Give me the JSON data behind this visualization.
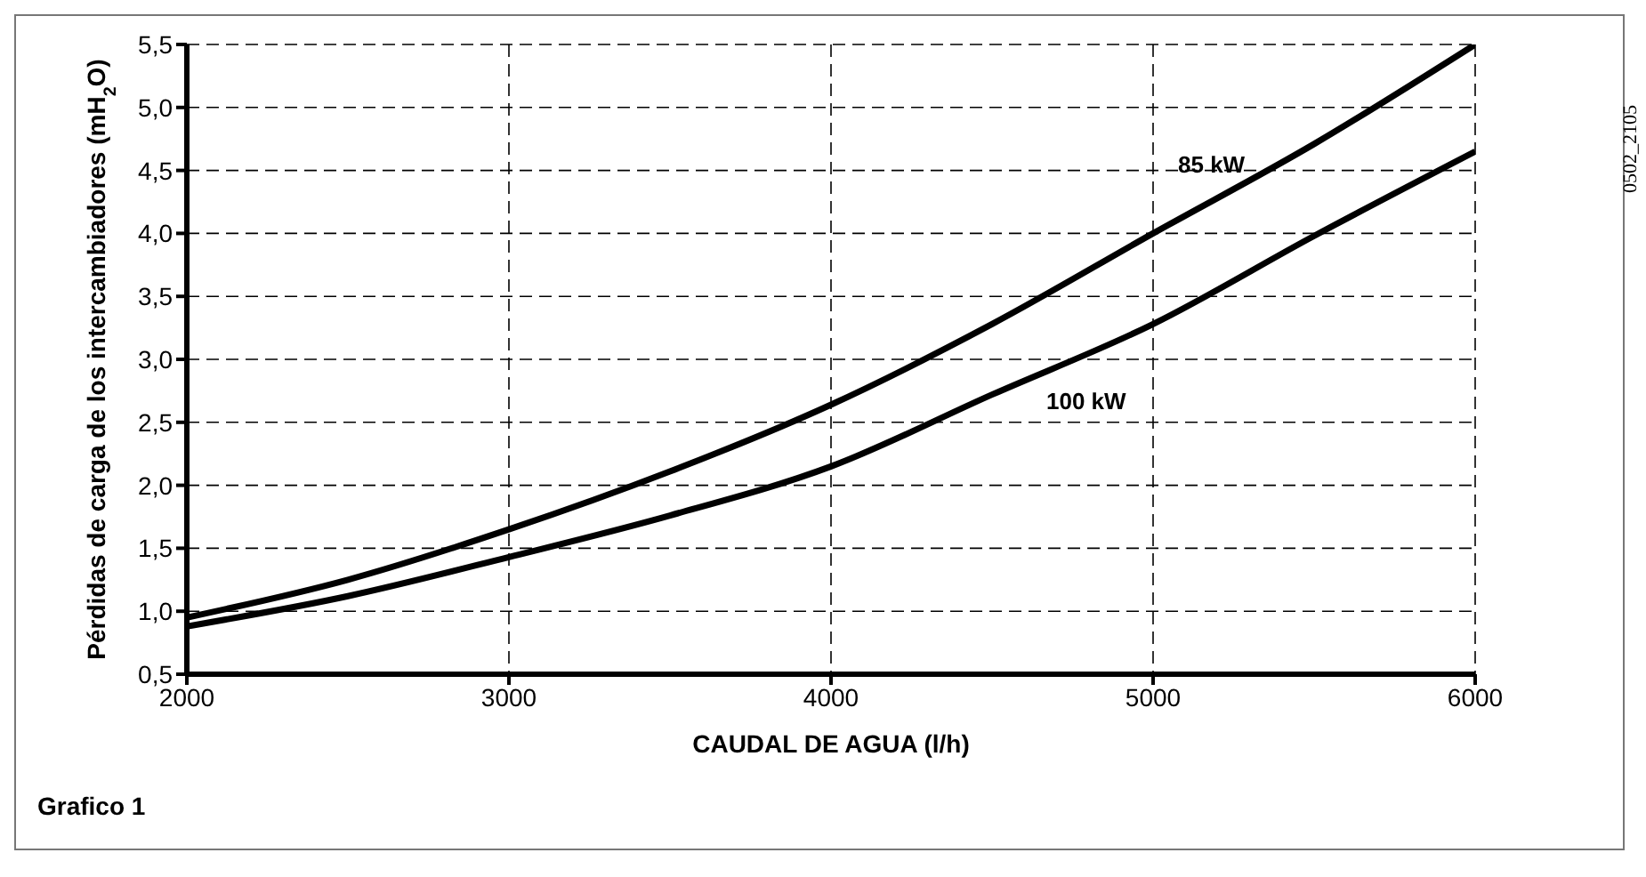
{
  "chart_data": {
    "type": "line",
    "xlabel": "CAUDAL DE AGUA (l/h)",
    "ylabel": "Pérdidas de carga de los intercambiadores (mH$_{2}$O)",
    "x": [
      2000,
      2500,
      3000,
      3500,
      4000,
      4500,
      5000,
      5500,
      6000
    ],
    "series": [
      {
        "name": "85 kW",
        "color": "#000000",
        "values": [
          0.95,
          1.25,
          1.65,
          2.11,
          2.64,
          3.28,
          4.0,
          4.71,
          5.5
        ]
      },
      {
        "name": "100 kW",
        "color": "#000000",
        "values": [
          0.88,
          1.12,
          1.43,
          1.76,
          2.15,
          2.72,
          3.28,
          3.98,
          4.65
        ]
      }
    ],
    "xlim": [
      2000,
      6000
    ],
    "xticks": [
      2000,
      3000,
      4000,
      5000,
      6000
    ],
    "ylim": [
      0.5,
      5.5
    ],
    "yticks": [
      {
        "value": 0.5,
        "label": "0,5"
      },
      {
        "value": 1,
        "label": "1,0"
      },
      {
        "value": 1.5,
        "label": "1,5"
      },
      {
        "value": 2,
        "label": "2,0"
      },
      {
        "value": 2.5,
        "label": "2,5"
      },
      {
        "value": 3,
        "label": "3,0"
      },
      {
        "value": 3.5,
        "label": "3,5"
      },
      {
        "value": 4,
        "label": "4,0"
      },
      {
        "value": 4.5,
        "label": "4,5"
      },
      {
        "value": 5,
        "label": "5,0"
      },
      {
        "value": 5.5,
        "label": "5,5"
      }
    ],
    "grid": true,
    "marker": "none",
    "legend": false,
    "annotations": [
      "Grafico 1",
      "0502_2105"
    ]
  }
}
